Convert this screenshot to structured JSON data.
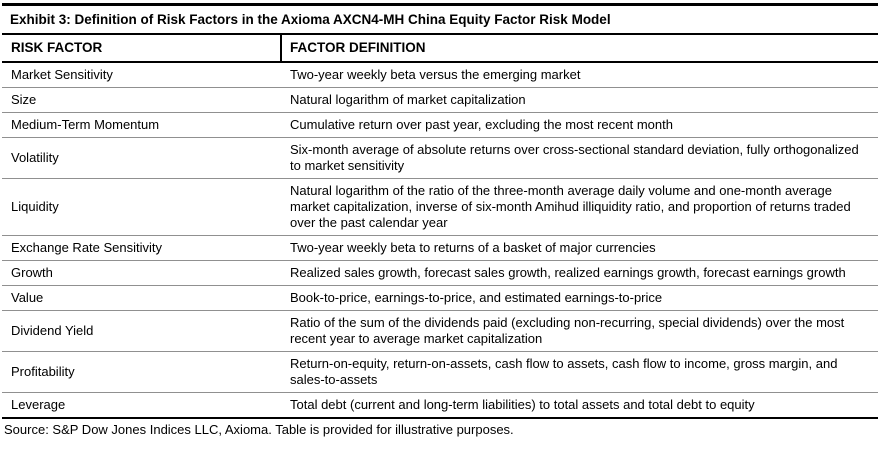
{
  "exhibit": {
    "title": "Exhibit 3: Definition of Risk Factors in the Axioma AXCN4-MH China Equity Factor Risk Model",
    "source_note": "Source: S&P Dow Jones Indices LLC, Axioma. Table is provided for illustrative purposes."
  },
  "table": {
    "columns": [
      "RISK FACTOR",
      "FACTOR DEFINITION"
    ],
    "rows": [
      {
        "factor": "Market Sensitivity",
        "definition": "Two-year weekly beta versus the emerging market"
      },
      {
        "factor": "Size",
        "definition": "Natural logarithm of market capitalization"
      },
      {
        "factor": "Medium-Term Momentum",
        "definition": "Cumulative return over past year, excluding the most recent month"
      },
      {
        "factor": "Volatility",
        "definition": "Six-month average of absolute returns over cross-sectional standard deviation, fully orthogonalized to market sensitivity"
      },
      {
        "factor": "Liquidity",
        "definition": "Natural logarithm of the ratio of the three-month average daily volume and one-month average market capitalization, inverse of six-month Amihud illiquidity ratio, and proportion of returns traded over the past calendar year"
      },
      {
        "factor": "Exchange Rate Sensitivity",
        "definition": "Two-year weekly beta to returns of a basket of major currencies"
      },
      {
        "factor": "Growth",
        "definition": "Realized sales growth, forecast sales growth, realized earnings growth, forecast earnings growth"
      },
      {
        "factor": "Value",
        "definition": "Book-to-price, earnings-to-price, and estimated earnings-to-price"
      },
      {
        "factor": "Dividend Yield",
        "definition": "Ratio of the sum of the dividends paid (excluding non-recurring, special dividends) over the most recent year to average market capitalization"
      },
      {
        "factor": "Profitability",
        "definition": "Return-on-equity, return-on-assets, cash flow to assets, cash flow to income, gross margin, and sales-to-assets"
      },
      {
        "factor": "Leverage",
        "definition": "Total debt (current and long-term liabilities) to total assets and total debt to equity"
      }
    ]
  },
  "colors": {
    "border_strong": "#000000",
    "row_divider": "#909090",
    "text": "#000000",
    "background": "#ffffff"
  }
}
